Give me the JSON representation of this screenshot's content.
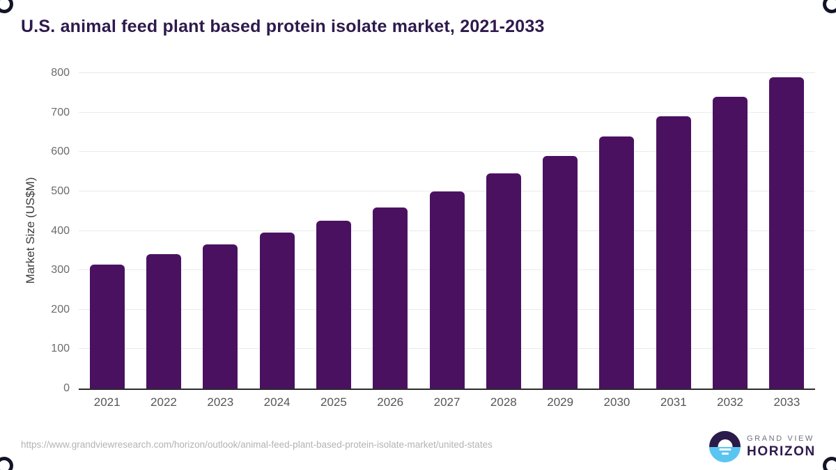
{
  "title": "U.S. animal feed plant based protein isolate market, 2021-2033",
  "colors": {
    "bar": "#4B1161",
    "title": "#2E1A4D",
    "logo_top": "#2B1B4A",
    "logo_bottom": "#5BC5F2"
  },
  "chart_data": {
    "type": "bar",
    "title": "U.S. animal feed plant based protein isolate market, 2021-2033",
    "categories": [
      "2021",
      "2022",
      "2023",
      "2024",
      "2025",
      "2026",
      "2027",
      "2028",
      "2029",
      "2030",
      "2031",
      "2032",
      "2033"
    ],
    "values": [
      315,
      340,
      365,
      395,
      425,
      460,
      500,
      545,
      590,
      640,
      690,
      740,
      790
    ],
    "xlabel": "",
    "ylabel": "Market Size (US$M)",
    "ylim": [
      0,
      800
    ],
    "ytick_step": 100,
    "yticks": [
      0,
      100,
      200,
      300,
      400,
      500,
      600,
      700,
      800
    ],
    "grid": "horizontal",
    "legend": "none",
    "bar_color": "#4B1161"
  },
  "footer": {
    "source_url": "https://www.grandviewresearch.com/horizon/outlook/animal-feed-plant-based-protein-isolate-market/united-states",
    "logo": {
      "line1": "GRAND VIEW",
      "line2": "HORIZON"
    }
  }
}
